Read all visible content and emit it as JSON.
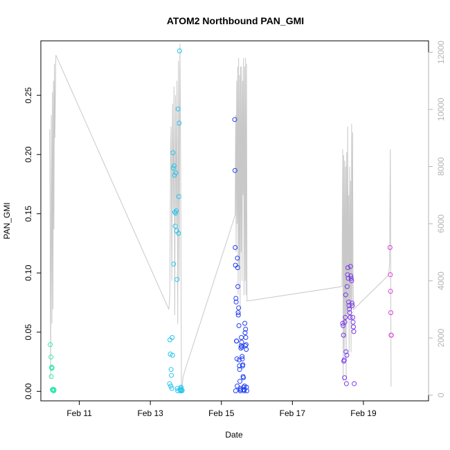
{
  "chart_data": {
    "type": "scatter",
    "title": "ATOM2 Northbound PAN_GMI",
    "xlabel": "Date",
    "ylabel": "PAN_GMI",
    "xlim": [
      "2016-02-09T22:00",
      "2016-02-20T20:00"
    ],
    "ylim": [
      -0.008,
      0.296
    ],
    "y2lim": [
      -200,
      12400
    ],
    "grid": false,
    "x_ticks": [
      {
        "date": "2016-02-11T00:00",
        "label": "Feb 11"
      },
      {
        "date": "2016-02-13T00:00",
        "label": "Feb 13"
      },
      {
        "date": "2016-02-15T00:00",
        "label": "Feb 15"
      },
      {
        "date": "2016-02-17T00:00",
        "label": "Feb 17"
      },
      {
        "date": "2016-02-19T00:00",
        "label": "Feb 19"
      }
    ],
    "y_ticks": [
      {
        "value": 0.0,
        "label": "0.00"
      },
      {
        "value": 0.05,
        "label": "0.05"
      },
      {
        "value": 0.1,
        "label": "0.10"
      },
      {
        "value": 0.15,
        "label": "0.15"
      },
      {
        "value": 0.2,
        "label": "0.20"
      },
      {
        "value": 0.25,
        "label": "0.25"
      }
    ],
    "y2_ticks": [
      {
        "value": 0,
        "label": "0"
      },
      {
        "value": 2000,
        "label": "2000"
      },
      {
        "value": 4000,
        "label": "4000"
      },
      {
        "value": 6000,
        "label": "6000"
      },
      {
        "value": 8000,
        "label": "8000"
      },
      {
        "value": 10000,
        "label": "10000"
      },
      {
        "value": 12000,
        "label": "12000"
      }
    ],
    "colors": {
      "flight1": "#2ee8b0",
      "flight2": "#22c4ee",
      "flight3": "#1f3ef0",
      "flight4": "#7a36e8",
      "flight5": "#e03ce0",
      "altitude_line": "#c8c8c8",
      "frame": "#000000",
      "right_axis": "#b3b3b3"
    },
    "series": [
      {
        "color_key": "flight1",
        "x": [
          "2016-02-10T04:20",
          "2016-02-10T04:50",
          "2016-02-10T05:00",
          "2016-02-10T05:15",
          "2016-02-10T05:25",
          "2016-02-10T05:35",
          "2016-02-10T05:45",
          "2016-02-10T06:00",
          "2016-02-10T06:10",
          "2016-02-10T06:20",
          "2016-02-10T06:30",
          "2016-02-10T06:45",
          "2016-02-10T06:55"
        ],
        "y": [
          0.0395,
          0.029,
          0.0125,
          0.0205,
          0.0195,
          0.0198,
          0.0015,
          0.001,
          0.0008,
          0.0012,
          0.0018,
          0.0005,
          0.0011
        ]
      },
      {
        "color_key": "flight2",
        "x": [
          "2016-02-13T13:00",
          "2016-02-13T13:15",
          "2016-02-13T13:30",
          "2016-02-13T13:45",
          "2016-02-13T14:00",
          "2016-02-13T14:15",
          "2016-02-13T14:30",
          "2016-02-13T14:45",
          "2016-02-13T15:00",
          "2016-02-13T15:15",
          "2016-02-13T15:30",
          "2016-02-13T15:45",
          "2016-02-13T16:00",
          "2016-02-13T16:15",
          "2016-02-13T16:30",
          "2016-02-13T16:45",
          "2016-02-13T17:00",
          "2016-02-13T17:15",
          "2016-02-13T17:30",
          "2016-02-13T17:45",
          "2016-02-13T18:00",
          "2016-02-13T18:15",
          "2016-02-13T18:30",
          "2016-02-13T18:45",
          "2016-02-13T19:00",
          "2016-02-13T19:15",
          "2016-02-13T19:30",
          "2016-02-13T19:45",
          "2016-02-13T20:00",
          "2016-02-13T20:15",
          "2016-02-13T20:30",
          "2016-02-13T20:45",
          "2016-02-13T21:00",
          "2016-02-13T21:15",
          "2016-02-13T21:30"
        ],
        "y": [
          0.0065,
          0.0435,
          0.0315,
          0.0045,
          0.0185,
          0.0135,
          0.0025,
          0.0455,
          0.0305,
          0.2015,
          0.1885,
          0.1075,
          0.1905,
          0.1825,
          0.1515,
          0.1395,
          0.1505,
          0.1845,
          0.1525,
          0.1355,
          0.0945,
          0.0025,
          0.0005,
          0.2385,
          0.1335,
          0.1645,
          0.2265,
          0.2875,
          0.0015,
          0.0005,
          0.0025,
          0.0035,
          0.0015,
          0.0005,
          0.0008
        ]
      },
      {
        "color_key": "flight3",
        "x": [
          "2016-02-15T09:00",
          "2016-02-15T09:10",
          "2016-02-15T09:20",
          "2016-02-15T09:30",
          "2016-02-15T09:40",
          "2016-02-15T09:50",
          "2016-02-15T10:00",
          "2016-02-15T10:10",
          "2016-02-15T10:20",
          "2016-02-15T10:30",
          "2016-02-15T10:40",
          "2016-02-15T10:50",
          "2016-02-15T11:00",
          "2016-02-15T11:10",
          "2016-02-15T11:20",
          "2016-02-15T11:30",
          "2016-02-15T11:40",
          "2016-02-15T11:50",
          "2016-02-15T12:00",
          "2016-02-15T12:10",
          "2016-02-15T12:20",
          "2016-02-15T12:30",
          "2016-02-15T12:40",
          "2016-02-15T12:50",
          "2016-02-15T13:00",
          "2016-02-15T13:10",
          "2016-02-15T13:20",
          "2016-02-15T13:30",
          "2016-02-15T13:40",
          "2016-02-15T13:50",
          "2016-02-15T14:00",
          "2016-02-15T14:10",
          "2016-02-15T14:20",
          "2016-02-15T14:30",
          "2016-02-15T14:40",
          "2016-02-15T14:50",
          "2016-02-15T15:00",
          "2016-02-15T15:10",
          "2016-02-15T15:20",
          "2016-02-15T15:30",
          "2016-02-15T15:40",
          "2016-02-15T15:50",
          "2016-02-15T16:00",
          "2016-02-15T16:10",
          "2016-02-15T16:20",
          "2016-02-15T16:30",
          "2016-02-15T16:40",
          "2016-02-15T16:50",
          "2016-02-15T17:00",
          "2016-02-15T17:10"
        ],
        "y": [
          0.2295,
          0.1865,
          0.1215,
          0.1065,
          0.0005,
          0.0785,
          0.0755,
          0.0425,
          0.0425,
          0.0275,
          0.0045,
          0.1125,
          0.1045,
          0.0885,
          0.0665,
          0.0645,
          0.0705,
          0.0555,
          0.0265,
          0.0215,
          0.0185,
          0.0085,
          0.0025,
          0.0005,
          0.0015,
          0.0365,
          0.0385,
          0.0455,
          0.0415,
          0.0375,
          0.0295,
          0.0275,
          0.0215,
          0.0225,
          0.0125,
          0.0115,
          0.0035,
          0.0015,
          0.0005,
          0.0015,
          0.0045,
          0.0575,
          0.0495,
          0.0385,
          0.0525,
          0.0455,
          0.0395,
          0.0355,
          0.0035,
          0.0005
        ]
      },
      {
        "color_key": "flight4",
        "x": [
          "2016-02-18T10:00",
          "2016-02-18T10:15",
          "2016-02-18T10:30",
          "2016-02-18T10:45",
          "2016-02-18T11:00",
          "2016-02-18T11:15",
          "2016-02-18T11:30",
          "2016-02-18T11:45",
          "2016-02-18T12:00",
          "2016-02-18T12:15",
          "2016-02-18T12:30",
          "2016-02-18T12:45",
          "2016-02-18T13:00",
          "2016-02-18T13:15",
          "2016-02-18T13:30",
          "2016-02-18T13:45",
          "2016-02-18T14:00",
          "2016-02-18T14:15",
          "2016-02-18T14:30",
          "2016-02-18T14:45",
          "2016-02-18T15:00",
          "2016-02-18T15:15",
          "2016-02-18T15:30",
          "2016-02-18T15:45",
          "2016-02-18T16:00",
          "2016-02-18T16:15",
          "2016-02-18T16:30",
          "2016-02-18T16:45",
          "2016-02-18T17:00",
          "2016-02-18T17:15",
          "2016-02-18T17:30",
          "2016-02-18T17:45"
        ],
        "y": [
          0.0575,
          0.0555,
          0.0475,
          0.0255,
          0.0265,
          0.0115,
          0.0585,
          0.0625,
          0.0815,
          0.0335,
          0.0065,
          0.0305,
          0.0885,
          0.0985,
          0.1045,
          0.0955,
          0.0755,
          0.0725,
          0.0695,
          0.0665,
          0.0625,
          0.1055,
          0.0975,
          0.0955,
          0.0935,
          0.0745,
          0.0725,
          0.0625,
          0.0585,
          0.0545,
          0.0505,
          0.0065
        ]
      },
      {
        "color_key": "flight5",
        "x": [
          "2016-02-19T18:00",
          "2016-02-19T18:10",
          "2016-02-19T18:20",
          "2016-02-19T18:30",
          "2016-02-19T18:40",
          "2016-02-19T18:50"
        ],
        "y": [
          0.1215,
          0.0985,
          0.0845,
          0.0665,
          0.0475,
          0.0475
        ]
      }
    ],
    "altitude_line": {
      "x": [
        "2016-02-10T04:00",
        "2016-02-10T04:40",
        "2016-02-10T05:00",
        "2016-02-10T05:30",
        "2016-02-10T05:50",
        "2016-02-10T06:10",
        "2016-02-10T06:30",
        "2016-02-10T06:50",
        "2016-02-10T07:10",
        "2016-02-10T07:30",
        "2016-02-10T08:10",
        "2016-02-13T12:30",
        "2016-02-13T13:10",
        "2016-02-13T13:40",
        "2016-02-13T14:00",
        "2016-02-13T14:30",
        "2016-02-13T15:00",
        "2016-02-13T15:30",
        "2016-02-13T16:00",
        "2016-02-13T16:30",
        "2016-02-13T17:00",
        "2016-02-13T17:30",
        "2016-02-13T18:00",
        "2016-02-13T18:30",
        "2016-02-13T19:00",
        "2016-02-13T19:30",
        "2016-02-13T20:00",
        "2016-02-13T20:30",
        "2016-02-13T21:00",
        "2016-02-13T21:30",
        "2016-02-13T22:00",
        "2016-02-13T23:00",
        "2016-02-15T09:20",
        "2016-02-15T09:40",
        "2016-02-15T10:00",
        "2016-02-15T10:20",
        "2016-02-15T10:40",
        "2016-02-15T11:00",
        "2016-02-15T11:20",
        "2016-02-15T11:40",
        "2016-02-15T12:00",
        "2016-02-15T12:20",
        "2016-02-15T12:40",
        "2016-02-15T13:00",
        "2016-02-15T13:20",
        "2016-02-15T13:40",
        "2016-02-15T14:00",
        "2016-02-15T14:20",
        "2016-02-15T14:40",
        "2016-02-15T15:00",
        "2016-02-15T15:20",
        "2016-02-15T15:40",
        "2016-02-15T16:00",
        "2016-02-15T16:20",
        "2016-02-15T16:40",
        "2016-02-15T17:00",
        "2016-02-15T17:20",
        "2016-02-15T17:40",
        "2016-02-15T18:00",
        "2016-02-18T09:30",
        "2016-02-18T10:00",
        "2016-02-18T10:20",
        "2016-02-18T10:40",
        "2016-02-18T11:00",
        "2016-02-18T11:20",
        "2016-02-18T11:40",
        "2016-02-18T12:00",
        "2016-02-18T12:20",
        "2016-02-18T12:40",
        "2016-02-18T13:00",
        "2016-02-18T13:20",
        "2016-02-18T13:40",
        "2016-02-18T14:00",
        "2016-02-18T14:20",
        "2016-02-18T14:40",
        "2016-02-18T15:00",
        "2016-02-18T15:20",
        "2016-02-18T15:40",
        "2016-02-18T16:00",
        "2016-02-18T16:20",
        "2016-02-18T16:40",
        "2016-02-18T17:00",
        "2016-02-18T17:20",
        "2016-02-19T17:00",
        "2016-02-19T17:40",
        "2016-02-19T18:10",
        "2016-02-19T18:40"
      ],
      "y": [
        9300,
        600,
        9800,
        2500,
        10600,
        3000,
        11000,
        5800,
        11600,
        9000,
        11900,
        3000,
        3500,
        8500,
        9400,
        4000,
        10200,
        6500,
        10800,
        2800,
        10500,
        6000,
        11000,
        2500,
        11700,
        4000,
        12300,
        8000,
        300,
        200,
        600,
        800,
        6300,
        9800,
        5000,
        11000,
        6000,
        11500,
        3500,
        11800,
        4500,
        11200,
        3000,
        11500,
        5000,
        11500,
        4000,
        11000,
        7000,
        11800,
        3500,
        11500,
        4000,
        11800,
        3500,
        11600,
        3300,
        3300,
        3300,
        3800,
        8600,
        500,
        8400,
        1500,
        8200,
        2000,
        8000,
        500,
        8500,
        2800,
        9400,
        3000,
        7000,
        1500,
        8000,
        3000,
        7500,
        1500,
        9500,
        3000,
        9200,
        4000,
        3000,
        4200,
        4600,
        8600,
        300
      ]
    }
  }
}
